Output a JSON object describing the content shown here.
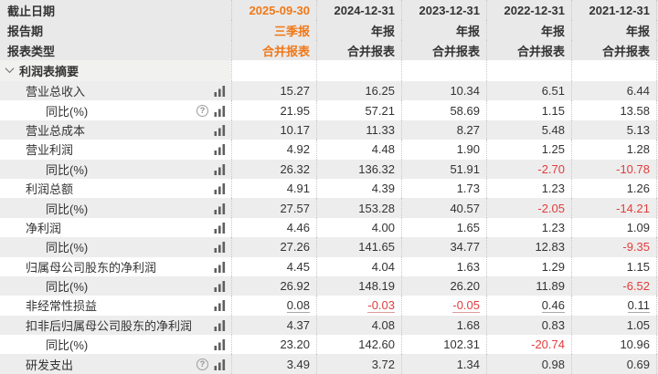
{
  "colors": {
    "accent_orange": "#f07818",
    "negative_red": "#e23c3c",
    "text": "#333333",
    "header_bg": "#e9e9e9",
    "zebra_bg": "#ededed"
  },
  "icons": {
    "chart": "bar-chart-icon",
    "help": "help-icon",
    "section_chevron": "chevron-down-icon"
  },
  "header_rows": [
    {
      "label": "截止日期",
      "values": [
        "2025-09-30",
        "2024-12-31",
        "2023-12-31",
        "2022-12-31",
        "2021-12-31"
      ]
    },
    {
      "label": "报告期",
      "values": [
        "三季报",
        "年报",
        "年报",
        "年报",
        "年报"
      ]
    },
    {
      "label": "报表类型",
      "values": [
        "合并报表",
        "合并报表",
        "合并报表",
        "合并报表",
        "合并报表"
      ]
    }
  ],
  "section": {
    "label": "利润表摘要"
  },
  "rows": [
    {
      "label": "营业总收入",
      "indent": 1,
      "help": false,
      "chart": true,
      "underline": false,
      "values": [
        "15.27",
        "16.25",
        "10.34",
        "6.51",
        "6.44"
      ]
    },
    {
      "label": "同比(%)",
      "indent": 2,
      "help": true,
      "chart": true,
      "underline": false,
      "values": [
        "21.95",
        "57.21",
        "58.69",
        "1.15",
        "13.58"
      ]
    },
    {
      "label": "营业总成本",
      "indent": 1,
      "help": false,
      "chart": true,
      "underline": false,
      "values": [
        "10.17",
        "11.33",
        "8.27",
        "5.48",
        "5.13"
      ]
    },
    {
      "label": "营业利润",
      "indent": 1,
      "help": false,
      "chart": true,
      "underline": false,
      "values": [
        "4.92",
        "4.48",
        "1.90",
        "1.25",
        "1.28"
      ]
    },
    {
      "label": "同比(%)",
      "indent": 2,
      "help": false,
      "chart": true,
      "underline": false,
      "values": [
        "26.32",
        "136.32",
        "51.91",
        "-2.70",
        "-10.78"
      ]
    },
    {
      "label": "利润总额",
      "indent": 1,
      "help": false,
      "chart": true,
      "underline": false,
      "values": [
        "4.91",
        "4.39",
        "1.73",
        "1.23",
        "1.26"
      ]
    },
    {
      "label": "同比(%)",
      "indent": 2,
      "help": false,
      "chart": true,
      "underline": false,
      "values": [
        "27.57",
        "153.28",
        "40.57",
        "-2.05",
        "-14.21"
      ]
    },
    {
      "label": "净利润",
      "indent": 1,
      "help": false,
      "chart": true,
      "underline": false,
      "values": [
        "4.46",
        "4.00",
        "1.65",
        "1.23",
        "1.09"
      ]
    },
    {
      "label": "同比(%)",
      "indent": 2,
      "help": false,
      "chart": true,
      "underline": false,
      "values": [
        "27.26",
        "141.65",
        "34.77",
        "12.83",
        "-9.35"
      ]
    },
    {
      "label": "归属母公司股东的净利润",
      "indent": 1,
      "help": false,
      "chart": true,
      "underline": false,
      "values": [
        "4.45",
        "4.04",
        "1.63",
        "1.29",
        "1.15"
      ]
    },
    {
      "label": "同比(%)",
      "indent": 2,
      "help": false,
      "chart": true,
      "underline": false,
      "values": [
        "26.92",
        "148.19",
        "26.20",
        "11.89",
        "-6.52"
      ]
    },
    {
      "label": "非经常性损益",
      "indent": 1,
      "help": false,
      "chart": true,
      "underline": true,
      "values": [
        "0.08",
        "-0.03",
        "-0.05",
        "0.46",
        "0.11"
      ]
    },
    {
      "label": "扣非后归属母公司股东的净利润",
      "indent": 1,
      "help": false,
      "chart": true,
      "underline": false,
      "values": [
        "4.37",
        "4.08",
        "1.68",
        "0.83",
        "1.05"
      ]
    },
    {
      "label": "同比(%)",
      "indent": 2,
      "help": false,
      "chart": true,
      "underline": false,
      "values": [
        "23.20",
        "142.60",
        "102.31",
        "-20.74",
        "10.96"
      ]
    },
    {
      "label": "研发支出",
      "indent": 1,
      "help": true,
      "chart": true,
      "underline": false,
      "values": [
        "3.49",
        "3.72",
        "1.34",
        "0.98",
        "0.69"
      ]
    }
  ]
}
